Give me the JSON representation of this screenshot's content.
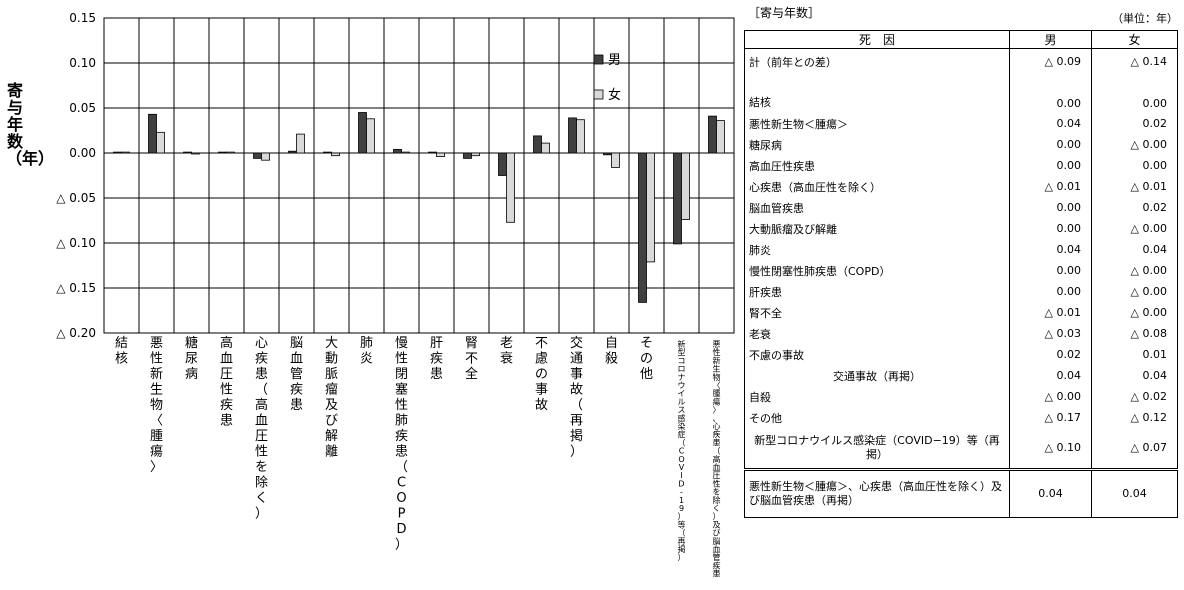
{
  "chart_data": {
    "type": "bar",
    "title": "",
    "ylabel": "寄与年数（年）",
    "ylim": [
      -0.2,
      0.15
    ],
    "yticks": [
      {
        "value": 0.15,
        "label": "0.15"
      },
      {
        "value": 0.1,
        "label": "0.10"
      },
      {
        "value": 0.05,
        "label": "0.05"
      },
      {
        "value": 0.0,
        "label": "0.00"
      },
      {
        "value": -0.05,
        "label": "△ 0.05"
      },
      {
        "value": -0.1,
        "label": "△ 0.10"
      },
      {
        "value": -0.15,
        "label": "△ 0.15"
      },
      {
        "value": -0.2,
        "label": "△ 0.20"
      }
    ],
    "grid": true,
    "legend_position": "top-right",
    "categories": [
      "結核",
      "悪性新生物〈腫瘍〉",
      "糖尿病",
      "高血圧性疾患",
      "心疾患（高血圧性を除く）",
      "脳血管疾患",
      "大動脈瘤及び解離",
      "肺炎",
      "慢性閉塞性肺疾患（COPD）",
      "肝疾患",
      "腎不全",
      "老衰",
      "不慮の事故",
      "交通事故（再掲）",
      "自殺",
      "その他",
      "新型コロナウイルス感染症（COVID-19）等（再掲）",
      "悪性新生物〈腫瘍〉、心疾患（高血圧性を除く）及び脳血管疾患（再掲）"
    ],
    "series": [
      {
        "name": "男",
        "color": "#404040",
        "values": [
          0.001,
          0.043,
          0.001,
          0.001,
          -0.006,
          0.002,
          0.001,
          0.045,
          0.004,
          0.001,
          -0.006,
          -0.025,
          0.019,
          0.039,
          -0.002,
          -0.166,
          -0.101,
          0.041
        ]
      },
      {
        "name": "女",
        "color": "#d9d9d9",
        "values": [
          0.001,
          0.023,
          -0.001,
          0.001,
          -0.008,
          0.021,
          -0.003,
          0.038,
          0.001,
          -0.004,
          -0.003,
          -0.077,
          0.011,
          0.037,
          -0.016,
          -0.121,
          -0.074,
          0.036
        ]
      }
    ]
  },
  "table": {
    "title": "［寄与年数］",
    "unit": "（単位：年）",
    "headers": [
      "死　因",
      "男",
      "女"
    ],
    "rows": [
      {
        "name": "計（前年との差）",
        "male": "△ 0.09",
        "female": "△ 0.14"
      },
      {
        "name": "結核",
        "male": "0.00",
        "female": "0.00"
      },
      {
        "name": "悪性新生物＜腫瘍＞",
        "male": "0.04",
        "female": "0.02"
      },
      {
        "name": "糖尿病",
        "male": "0.00",
        "female": "△ 0.00"
      },
      {
        "name": "高血圧性疾患",
        "male": "0.00",
        "female": "0.00"
      },
      {
        "name": "心疾患（高血圧性を除く）",
        "male": "△ 0.01",
        "female": "△ 0.01"
      },
      {
        "name": "脳血管疾患",
        "male": "0.00",
        "female": "0.02"
      },
      {
        "name": "大動脈瘤及び解離",
        "male": "0.00",
        "female": "△ 0.00"
      },
      {
        "name": "肺炎",
        "male": "0.04",
        "female": "0.04"
      },
      {
        "name": "慢性閉塞性肺疾患（COPD）",
        "male": "0.00",
        "female": "△ 0.00"
      },
      {
        "name": "肝疾患",
        "male": "0.00",
        "female": "△ 0.00"
      },
      {
        "name": "腎不全",
        "male": "△ 0.01",
        "female": "△ 0.00"
      },
      {
        "name": "老衰",
        "male": "△ 0.03",
        "female": "△ 0.08"
      },
      {
        "name": "不慮の事故",
        "male": "0.02",
        "female": "0.01"
      },
      {
        "name": "交通事故（再掲）",
        "male": "0.04",
        "female": "0.04"
      },
      {
        "name": "自殺",
        "male": "△ 0.00",
        "female": "△ 0.02"
      },
      {
        "name": "その他",
        "male": "△ 0.17",
        "female": "△ 0.12"
      },
      {
        "name": "新型コロナウイルス感染症（COVID−19）等（再掲）",
        "male": "△ 0.10",
        "female": "△ 0.07"
      }
    ],
    "footer": {
      "name": "悪性新生物＜腫瘍＞、心疾患（高血圧性を除く）及び脳血管疾患（再掲）",
      "male": "0.04",
      "female": "0.04"
    }
  }
}
